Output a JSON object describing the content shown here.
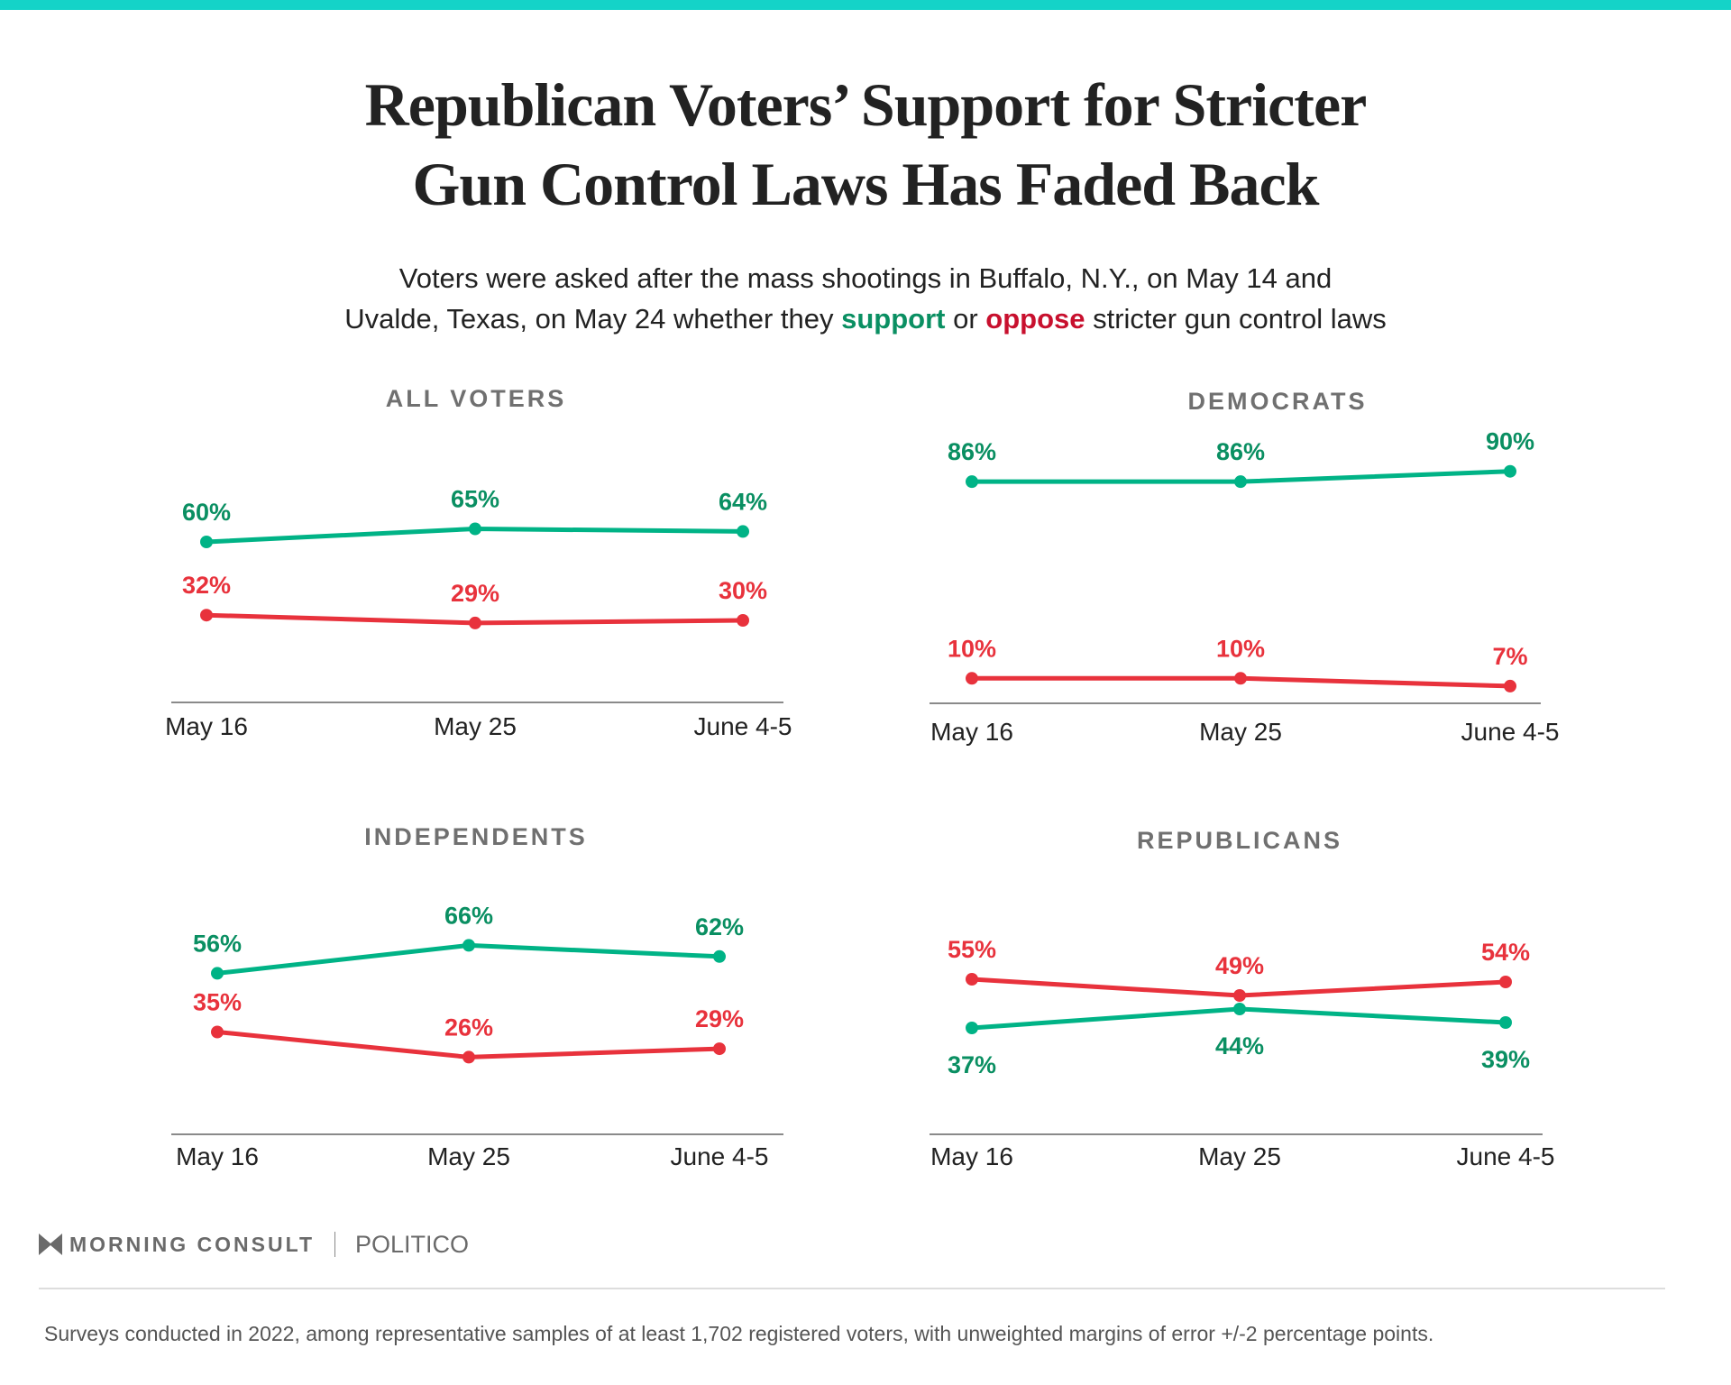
{
  "header": {
    "title_line1": "Republican Voters’ Support for Stricter",
    "title_line2": "Gun Control Laws Has Faded Back",
    "subtitle_line1": "Voters were asked after the mass shootings in Buffalo, N.Y., on May 14 and",
    "subtitle_line2_a": "Uvalde, Texas, on May 24 whether they ",
    "subtitle_support": "support",
    "subtitle_or": " or ",
    "subtitle_oppose": "oppose",
    "subtitle_line2_b": " stricter gun control laws"
  },
  "colors": {
    "accent_bar": "#14d3c8",
    "support_line": "#00b386",
    "support_label": "#0a8f62",
    "oppose": "#e8323c",
    "oppose_text": "#c8102e"
  },
  "chart_data": [
    {
      "type": "line",
      "title": "ALL VOTERS",
      "categories": [
        "May 16",
        "May 25",
        "June 4-5"
      ],
      "series": [
        {
          "key": "support",
          "values": [
            60,
            65,
            64
          ]
        },
        {
          "key": "oppose",
          "values": [
            32,
            29,
            30
          ]
        }
      ],
      "unit": "%"
    },
    {
      "type": "line",
      "title": "DEMOCRATS",
      "categories": [
        "May 16",
        "May 25",
        "June 4-5"
      ],
      "series": [
        {
          "key": "support",
          "values": [
            86,
            86,
            90
          ]
        },
        {
          "key": "oppose",
          "values": [
            10,
            10,
            7
          ]
        }
      ],
      "unit": "%"
    },
    {
      "type": "line",
      "title": "INDEPENDENTS",
      "categories": [
        "May 16",
        "May 25",
        "June 4-5"
      ],
      "series": [
        {
          "key": "support",
          "values": [
            56,
            66,
            62
          ]
        },
        {
          "key": "oppose",
          "values": [
            35,
            26,
            29
          ]
        }
      ],
      "unit": "%"
    },
    {
      "type": "line",
      "title": "REPUBLICANS",
      "categories": [
        "May 16",
        "May 25",
        "June 4-5"
      ],
      "series": [
        {
          "key": "support",
          "values": [
            37,
            44,
            39
          ]
        },
        {
          "key": "oppose",
          "values": [
            55,
            49,
            54
          ]
        }
      ],
      "unit": "%"
    }
  ],
  "footer": {
    "brand1": "MORNING CONSULT",
    "brand2": "POLITICO",
    "note": "Surveys conducted in 2022, among representative samples of at least 1,702 registered voters, with unweighted margins of error +/-2 percentage points."
  }
}
